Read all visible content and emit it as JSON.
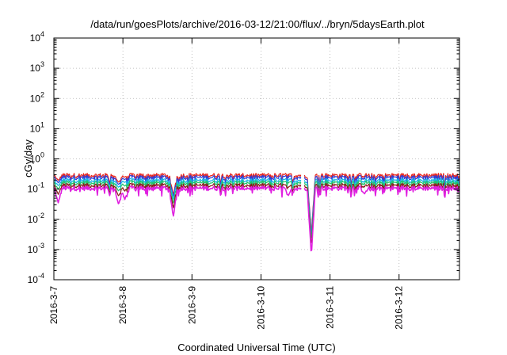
{
  "chart_data": {
    "type": "line",
    "title": "/data/run/goesPlots/archive/2016-03-12/21:00/flux/../bryn/5daysEarth.plot",
    "xlabel": "Coordinated Universal Time (UTC)",
    "ylabel": "cGy/day",
    "yscale": "log",
    "ylim": [
      0.0001,
      10000
    ],
    "xlim": [
      "2016-03-07",
      "2016-03-12 21:00"
    ],
    "grid": true,
    "legend": "none",
    "x_ticks": [
      "2016-3-7",
      "2016-3-8",
      "2016-3-9",
      "2016-3-10",
      "2016-3-11",
      "2016-3-12"
    ],
    "y_ticks": [
      {
        "base": "10",
        "exp": "-4",
        "value": 0.0001
      },
      {
        "base": "10",
        "exp": "-3",
        "value": 0.001
      },
      {
        "base": "10",
        "exp": "-2",
        "value": 0.01
      },
      {
        "base": "10",
        "exp": "-1",
        "value": 0.1
      },
      {
        "base": "10",
        "exp": "0",
        "value": 1
      },
      {
        "base": "10",
        "exp": "1",
        "value": 10
      },
      {
        "base": "10",
        "exp": "2",
        "value": 100
      },
      {
        "base": "10",
        "exp": "3",
        "value": 1000
      },
      {
        "base": "10",
        "exp": "4",
        "value": 10000
      }
    ],
    "series": [
      {
        "color": "#e8241c",
        "baseline": 0.28
      },
      {
        "color": "#2f3fd8",
        "baseline": 0.24
      },
      {
        "color": "#18b8e8",
        "baseline": 0.19
      },
      {
        "color": "#22c46a",
        "baseline": 0.16
      },
      {
        "color": "#8b1a1a",
        "baseline": 0.13
      },
      {
        "color": "#e020e0",
        "baseline": 0.105
      }
    ],
    "data_gap": [
      "2016-03-10 14:00",
      "2016-03-10 15:00"
    ],
    "dips": [
      {
        "t": "2016-03-07 01:30",
        "min": 0.035
      },
      {
        "t": "2016-03-07 22:30",
        "min": 0.03
      },
      {
        "t": "2016-03-08 00:40",
        "min": 0.045
      },
      {
        "t": "2016-03-08 17:30",
        "min": 0.012
      },
      {
        "t": "2016-03-10 09:30",
        "min": 0.06
      },
      {
        "t": "2016-03-10 17:30",
        "min": 0.0006
      },
      {
        "t": "2016-03-11 12:00",
        "min": 0.07
      }
    ]
  }
}
